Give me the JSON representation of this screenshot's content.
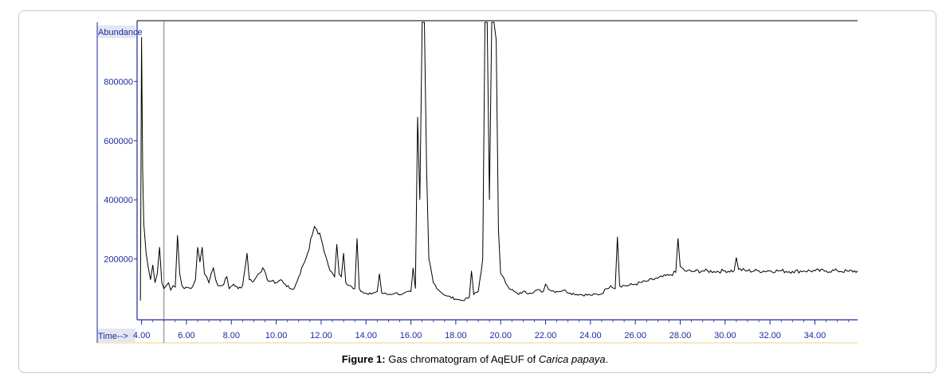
{
  "colors": {
    "axis": "#1b2a9e",
    "trace": "#000000",
    "frame_border": "#c8c8c8",
    "ylabel_bg": "#e6e6f2"
  },
  "caption": {
    "prefix": "Figure 1:",
    "text": "Gas chromatogram of AqEUF of",
    "species": "Carica papaya",
    "suffix": "."
  },
  "chart_data": {
    "type": "line",
    "ylabel": "Abundance",
    "xlabel": "Time-->",
    "xlim": [
      3.8,
      35.9
    ],
    "ylim": [
      0,
      1000000
    ],
    "x_ticks": [
      "4.00",
      "6.00",
      "8.00",
      "10.00",
      "12.00",
      "14.00",
      "16.00",
      "18.00",
      "20.00",
      "22.00",
      "24.00",
      "26.00",
      "28.00",
      "30.00",
      "32.00",
      "34.00"
    ],
    "y_ticks": [
      "200000",
      "400000",
      "600000",
      "800000"
    ],
    "cursor_x": 5.0,
    "series": [
      {
        "points": [
          [
            3.95,
            60000
          ],
          [
            4.0,
            950000
          ],
          [
            4.05,
            500000
          ],
          [
            4.1,
            320000
          ],
          [
            4.2,
            220000
          ],
          [
            4.3,
            170000
          ],
          [
            4.4,
            130000
          ],
          [
            4.5,
            180000
          ],
          [
            4.6,
            120000
          ],
          [
            4.7,
            150000
          ],
          [
            4.8,
            240000
          ],
          [
            4.9,
            120000
          ],
          [
            5.0,
            100000
          ],
          [
            5.1,
            110000
          ],
          [
            5.2,
            120000
          ],
          [
            5.3,
            95000
          ],
          [
            5.4,
            110000
          ],
          [
            5.5,
            105000
          ],
          [
            5.6,
            280000
          ],
          [
            5.7,
            150000
          ],
          [
            5.8,
            110000
          ],
          [
            5.9,
            100000
          ],
          [
            6.0,
            105000
          ],
          [
            6.2,
            100000
          ],
          [
            6.4,
            130000
          ],
          [
            6.5,
            240000
          ],
          [
            6.6,
            190000
          ],
          [
            6.7,
            240000
          ],
          [
            6.8,
            150000
          ],
          [
            6.9,
            140000
          ],
          [
            7.0,
            120000
          ],
          [
            7.1,
            150000
          ],
          [
            7.2,
            170000
          ],
          [
            7.3,
            130000
          ],
          [
            7.4,
            110000
          ],
          [
            7.6,
            110000
          ],
          [
            7.8,
            140000
          ],
          [
            7.9,
            100000
          ],
          [
            8.1,
            115000
          ],
          [
            8.3,
            100000
          ],
          [
            8.5,
            110000
          ],
          [
            8.7,
            220000
          ],
          [
            8.8,
            130000
          ],
          [
            9.0,
            125000
          ],
          [
            9.2,
            150000
          ],
          [
            9.4,
            170000
          ],
          [
            9.6,
            130000
          ],
          [
            9.8,
            125000
          ],
          [
            10.0,
            120000
          ],
          [
            10.2,
            130000
          ],
          [
            10.4,
            115000
          ],
          [
            10.6,
            100000
          ],
          [
            10.8,
            100000
          ],
          [
            11.0,
            140000
          ],
          [
            11.2,
            180000
          ],
          [
            11.4,
            220000
          ],
          [
            11.6,
            280000
          ],
          [
            11.7,
            310000
          ],
          [
            11.8,
            300000
          ],
          [
            12.0,
            270000
          ],
          [
            12.2,
            210000
          ],
          [
            12.4,
            160000
          ],
          [
            12.6,
            140000
          ],
          [
            12.7,
            250000
          ],
          [
            12.8,
            150000
          ],
          [
            12.9,
            140000
          ],
          [
            13.0,
            220000
          ],
          [
            13.1,
            120000
          ],
          [
            13.3,
            110000
          ],
          [
            13.5,
            100000
          ],
          [
            13.6,
            270000
          ],
          [
            13.7,
            100000
          ],
          [
            13.9,
            85000
          ],
          [
            14.1,
            80000
          ],
          [
            14.3,
            85000
          ],
          [
            14.5,
            90000
          ],
          [
            14.6,
            150000
          ],
          [
            14.7,
            85000
          ],
          [
            15.0,
            80000
          ],
          [
            15.3,
            85000
          ],
          [
            15.6,
            80000
          ],
          [
            16.0,
            90000
          ],
          [
            16.1,
            170000
          ],
          [
            16.2,
            100000
          ],
          [
            16.3,
            680000
          ],
          [
            16.4,
            400000
          ],
          [
            16.5,
            1000000
          ],
          [
            16.6,
            1000000
          ],
          [
            16.7,
            500000
          ],
          [
            16.8,
            200000
          ],
          [
            17.0,
            120000
          ],
          [
            17.3,
            90000
          ],
          [
            17.6,
            75000
          ],
          [
            18.0,
            65000
          ],
          [
            18.3,
            60000
          ],
          [
            18.6,
            70000
          ],
          [
            18.7,
            160000
          ],
          [
            18.8,
            80000
          ],
          [
            19.0,
            90000
          ],
          [
            19.2,
            200000
          ],
          [
            19.3,
            1000000
          ],
          [
            19.4,
            1000000
          ],
          [
            19.5,
            400000
          ],
          [
            19.6,
            1000000
          ],
          [
            19.7,
            1000000
          ],
          [
            19.8,
            940000
          ],
          [
            19.9,
            300000
          ],
          [
            20.0,
            150000
          ],
          [
            20.3,
            110000
          ],
          [
            20.6,
            90000
          ],
          [
            20.8,
            80000
          ],
          [
            21.0,
            90000
          ],
          [
            21.3,
            85000
          ],
          [
            21.6,
            95000
          ],
          [
            21.9,
            90000
          ],
          [
            22.0,
            115000
          ],
          [
            22.2,
            95000
          ],
          [
            22.5,
            90000
          ],
          [
            22.8,
            95000
          ],
          [
            23.1,
            85000
          ],
          [
            23.5,
            80000
          ],
          [
            24.0,
            78000
          ],
          [
            24.5,
            82000
          ],
          [
            24.7,
            100000
          ],
          [
            24.9,
            110000
          ],
          [
            25.1,
            100000
          ],
          [
            25.2,
            275000
          ],
          [
            25.3,
            110000
          ],
          [
            25.6,
            110000
          ],
          [
            26.0,
            115000
          ],
          [
            26.5,
            125000
          ],
          [
            27.0,
            135000
          ],
          [
            27.5,
            145000
          ],
          [
            27.8,
            155000
          ],
          [
            27.9,
            270000
          ],
          [
            28.0,
            175000
          ],
          [
            28.2,
            160000
          ],
          [
            28.5,
            158000
          ],
          [
            29.0,
            160000
          ],
          [
            29.5,
            158000
          ],
          [
            30.0,
            160000
          ],
          [
            30.4,
            160000
          ],
          [
            30.5,
            205000
          ],
          [
            30.6,
            165000
          ],
          [
            31.0,
            160000
          ],
          [
            31.5,
            160000
          ],
          [
            32.0,
            160000
          ],
          [
            32.5,
            160000
          ],
          [
            33.0,
            158000
          ],
          [
            33.5,
            160000
          ],
          [
            34.0,
            160000
          ],
          [
            34.5,
            160000
          ],
          [
            35.0,
            160000
          ],
          [
            35.5,
            158000
          ],
          [
            35.9,
            160000
          ]
        ]
      }
    ]
  }
}
